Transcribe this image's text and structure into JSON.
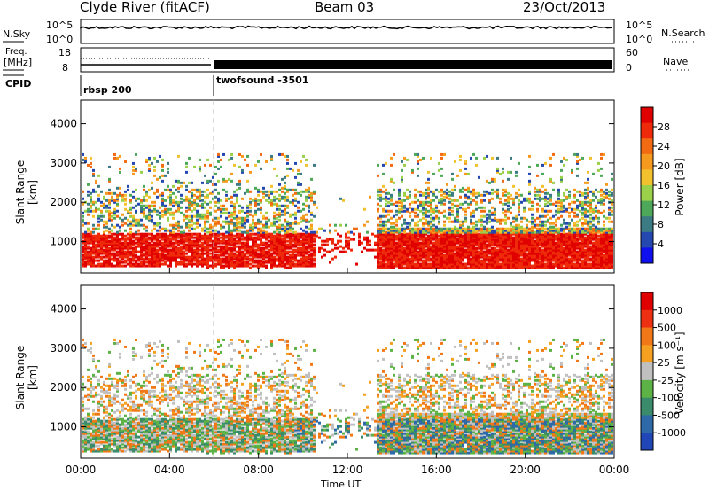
{
  "header": {
    "site": "Clyde River (fitACF)",
    "beam": "Beam 03",
    "date": "23/Oct/2013"
  },
  "top_panels": {
    "nsky_label": "N.Sky",
    "nsky_ticks": [
      "10^5",
      "10^0"
    ],
    "nsearch_label": "N.Search",
    "nsearch_ticks": [
      "10^5",
      "10^0"
    ],
    "freq_label_1": "Freq.",
    "freq_label_2": "[MHz]",
    "freq_ticks": [
      "18",
      "8"
    ],
    "nave_label": "Nave",
    "nave_ticks": [
      "60",
      "0"
    ],
    "cpid_label": "CPID",
    "cpid_entries": [
      "rbsp 200",
      "twofsound -3501"
    ]
  },
  "colors": {
    "power_scale": [
      "#1010ee",
      "#2448b0",
      "#3c7a84",
      "#4ea85a",
      "#9bd04a",
      "#f2c22e",
      "#f59a1e",
      "#f26a12",
      "#ee2a0a",
      "#e00000"
    ],
    "velocity_scale": [
      "#2046b8",
      "#2e6aa8",
      "#3a8a6c",
      "#5cb245",
      "#c0c0c0",
      "#f5a020",
      "#f07818",
      "#ee3012",
      "#e00000"
    ]
  },
  "chart_data": [
    {
      "type": "heatmap",
      "name": "Power",
      "xlabel": "",
      "ylabel": "Slant Range [km]",
      "x_ticks": [
        "00:00",
        "04:00",
        "08:00",
        "12:00",
        "16:00",
        "20:00",
        "00:00"
      ],
      "y_ticks": [
        "1000",
        "2000",
        "3000",
        "4000"
      ],
      "xlim": [
        0,
        24
      ],
      "ylim": [
        200,
        4600
      ],
      "colorbar_label": "Power [dB]",
      "colorbar_ticks": [
        "28",
        "24",
        "20",
        "16",
        "12",
        "8",
        "4"
      ],
      "colorbar_range": [
        0,
        32
      ]
    },
    {
      "type": "heatmap",
      "name": "Velocity",
      "xlabel": "Time UT",
      "ylabel": "Slant Range [km]",
      "x_ticks": [
        "00:00",
        "04:00",
        "08:00",
        "12:00",
        "16:00",
        "20:00",
        "00:00"
      ],
      "y_ticks": [
        "1000",
        "2000",
        "3000",
        "4000"
      ],
      "xlim": [
        0,
        24
      ],
      "ylim": [
        200,
        4600
      ],
      "colorbar_label": "Velocity [m s⁻¹]",
      "colorbar_ticks": [
        "1000",
        "500",
        "100",
        "25",
        "-25",
        "-100",
        "-500",
        "-1000"
      ]
    }
  ]
}
